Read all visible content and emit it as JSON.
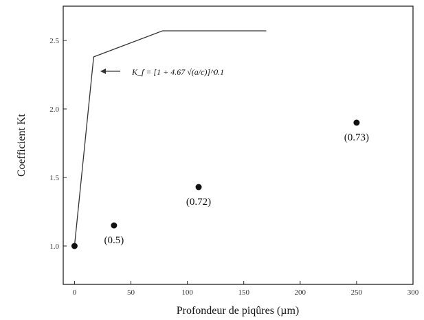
{
  "chart_data": {
    "type": "scatter",
    "xlabel": "Profondeur de piqûres (µm)",
    "ylabel": "Coefficient Kt",
    "xlim": [
      -10,
      300
    ],
    "ylim": [
      0.72,
      2.75
    ],
    "grid": false,
    "x_ticks": [
      "0",
      "50",
      "100",
      "150",
      "200",
      "250",
      "300"
    ],
    "y_ticks": [
      "1.0",
      "1.5",
      "2.0",
      "2.5"
    ],
    "series": [
      {
        "type": "scatter",
        "points": [
          {
            "x": 0,
            "y": 1.0,
            "label": ""
          },
          {
            "x": 35,
            "y": 1.15,
            "label": "(0.5)"
          },
          {
            "x": 110,
            "y": 1.43,
            "label": "(0.72)"
          },
          {
            "x": 250,
            "y": 1.9,
            "label": "(0.73)"
          }
        ]
      },
      {
        "type": "line",
        "x": [
          0,
          17,
          78,
          170
        ],
        "y": [
          1.0,
          2.38,
          2.57,
          2.57
        ]
      }
    ],
    "annotation": {
      "text": "K_f = [1 + 4.67 √(a/c)]^0.1",
      "arrow": "left"
    }
  }
}
